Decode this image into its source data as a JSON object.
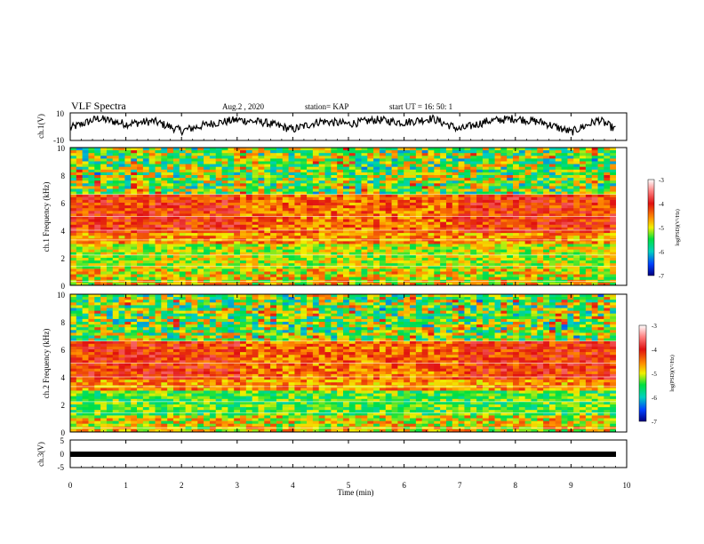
{
  "header": {
    "title": "VLF Spectra",
    "date": "Aug.2 , 2020",
    "station": "station= KAP",
    "start": "start UT = 16: 50: 1"
  },
  "chart_data": [
    {
      "type": "line",
      "panel": "ch1-waveform",
      "ylabel": "ch.1(V)",
      "ylim": [
        -10,
        10
      ],
      "yticks": [
        "10",
        "-10"
      ],
      "xlim": [
        0,
        10
      ],
      "note": "raw waveform trace",
      "x": [
        0,
        0.5,
        1,
        1.5,
        2,
        2.5,
        3,
        3.5,
        4,
        4.5,
        5,
        5.5,
        6,
        6.5,
        7,
        7.5,
        8,
        8.5,
        9,
        9.5,
        9.8
      ],
      "values": [
        -1,
        6,
        2,
        4,
        -3,
        2,
        5,
        3,
        -2,
        4,
        2,
        5,
        3,
        6,
        -2,
        4,
        6,
        3,
        -4,
        5,
        -2
      ]
    },
    {
      "type": "heatmap",
      "panel": "ch1-spectrogram",
      "ylabel": "ch.1 Frequency (kHz)",
      "ylim": [
        0,
        10
      ],
      "yticks": [
        "0",
        "2",
        "4",
        "6",
        "8",
        "10"
      ],
      "xlim": [
        0,
        10
      ],
      "colorbar": {
        "label": "log(PSD)(V²/Hz)",
        "range": [
          -7,
          -3
        ],
        "ticks": [
          "-3",
          "-4",
          "-5",
          "-6",
          "-7"
        ]
      }
    },
    {
      "type": "heatmap",
      "panel": "ch2-spectrogram",
      "ylabel": "ch.2 Frequency (kHz)",
      "ylim": [
        0,
        10
      ],
      "yticks": [
        "0",
        "2",
        "4",
        "6",
        "8",
        "10"
      ],
      "xlim": [
        0,
        10
      ],
      "colorbar": {
        "label": "log(PSD)(V²/Hz)",
        "range": [
          -7,
          -3
        ],
        "ticks": [
          "-3",
          "-4",
          "-5",
          "-6",
          "-7"
        ]
      }
    },
    {
      "type": "line",
      "panel": "ch3-waveform",
      "ylabel": "ch.3(V)",
      "ylim": [
        -5,
        5
      ],
      "yticks": [
        "5",
        "0",
        "-5"
      ],
      "xlim": [
        0,
        10
      ],
      "x": [
        0,
        9.8
      ],
      "values": [
        0,
        0
      ]
    }
  ],
  "xaxis": {
    "label": "Time (min)",
    "ticks": [
      "0",
      "1",
      "2",
      "3",
      "4",
      "5",
      "6",
      "7",
      "8",
      "9",
      "10"
    ]
  },
  "colors": {
    "low": "#0000a0",
    "mid": "#00e040",
    "high": "#e01010",
    "top": "#ffffff"
  }
}
